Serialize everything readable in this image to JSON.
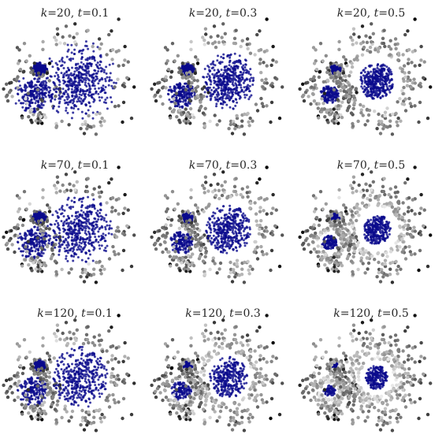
{
  "chart_data": {
    "type": "scatter",
    "layout": "3x3 grid of small-multiple scatter panels, no axes, no ticks, no legend, no grid",
    "colormap": {
      "inlier": "#0a0a8c",
      "outlier_scale": [
        "#ffffff",
        "#000000"
      ]
    },
    "panels": [
      {
        "title": {
          "k_label": "k",
          "k_value": "=20",
          "t_label": "t",
          "t_value": "=0.1"
        },
        "k": 20,
        "t": 0.1
      },
      {
        "title": {
          "k_label": "k",
          "k_value": "=20",
          "t_label": "t",
          "t_value": "=0.3"
        },
        "k": 20,
        "t": 0.3
      },
      {
        "title": {
          "k_label": "k",
          "k_value": "=20",
          "t_label": "t",
          "t_value": "=0.5"
        },
        "k": 20,
        "t": 0.5
      },
      {
        "title": {
          "k_label": "k",
          "k_value": "=70",
          "t_label": "t",
          "t_value": "=0.1"
        },
        "k": 70,
        "t": 0.1
      },
      {
        "title": {
          "k_label": "k",
          "k_value": "=70",
          "t_label": "t",
          "t_value": "=0.3"
        },
        "k": 70,
        "t": 0.3
      },
      {
        "title": {
          "k_label": "k",
          "k_value": "=70",
          "t_label": "t",
          "t_value": "=0.5"
        },
        "k": 70,
        "t": 0.5
      },
      {
        "title": {
          "k_label": "k",
          "k_value": "=120",
          "t_label": "t",
          "t_value": "=0.1"
        },
        "k": 120,
        "t": 0.1
      },
      {
        "title": {
          "k_label": "k",
          "k_value": "=120",
          "t_label": "t",
          "t_value": "=0.3"
        },
        "k": 120,
        "t": 0.3
      },
      {
        "title": {
          "k_label": "k",
          "k_value": "=120",
          "t_label": "t",
          "t_value": "=0.5"
        },
        "k": 120,
        "t": 0.5
      }
    ]
  }
}
